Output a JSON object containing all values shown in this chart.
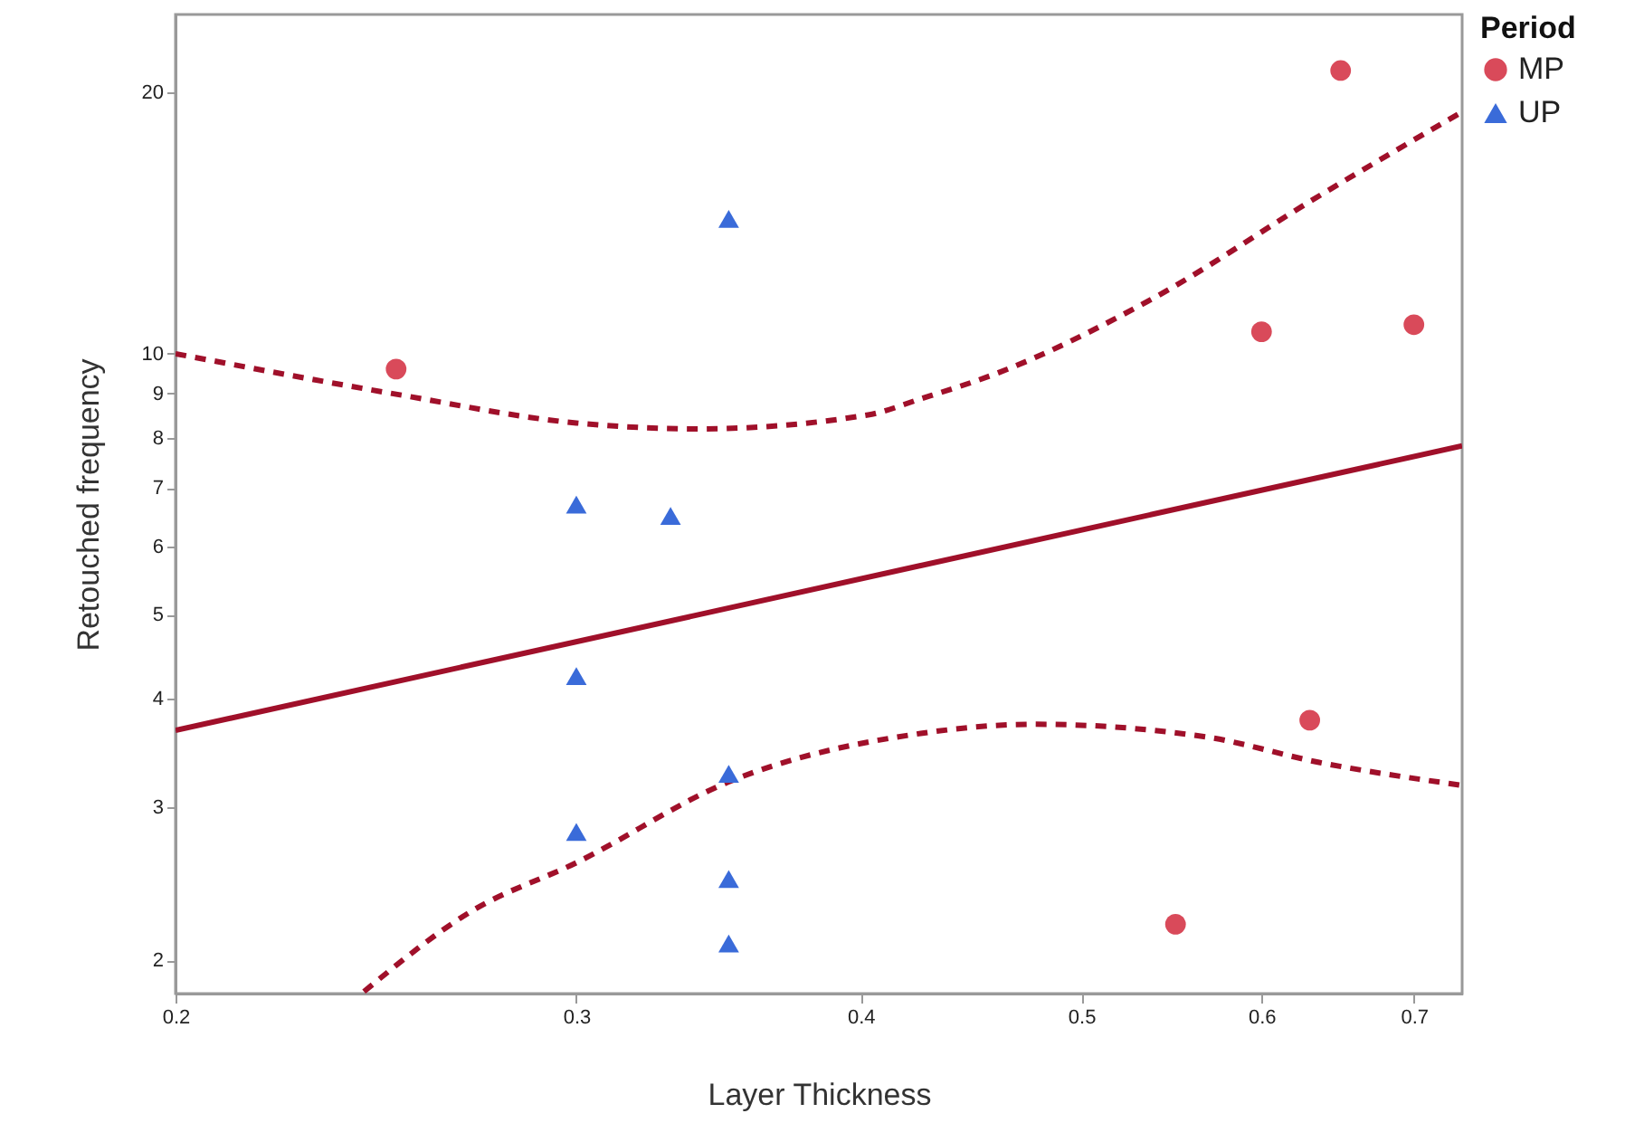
{
  "chart_data": {
    "type": "scatter",
    "xlabel": "Layer Thickness",
    "ylabel": "Retouched frequency",
    "legend_title": "Period",
    "legend": "top right",
    "grid": false,
    "log": "xy",
    "xlim": [
      0.2,
      0.735
    ],
    "xticks": [
      0.2,
      0.3,
      0.4,
      0.5,
      0.6,
      0.7
    ],
    "ylim": [
      1.83,
      24.6
    ],
    "yticks": [
      2,
      3,
      4,
      5,
      6,
      7,
      8,
      9,
      10,
      20
    ],
    "series": [
      {
        "name": "MP",
        "marker": "circle",
        "color": "#d94a5a",
        "x": [
          0.25,
          0.65,
          0.6,
          0.7,
          0.63,
          0.55
        ],
        "values": [
          9.6,
          21.2,
          10.6,
          10.8,
          3.78,
          2.2
        ]
      },
      {
        "name": "UP",
        "marker": "triangle",
        "color": "#3a6bd9",
        "x": [
          0.35,
          0.3,
          0.33,
          0.3,
          0.35,
          0.3,
          0.35,
          0.35
        ],
        "values": [
          14.3,
          6.7,
          6.5,
          4.25,
          3.28,
          2.81,
          2.48,
          2.09
        ]
      },
      {
        "type": "line",
        "line_style": "solid",
        "color": "#a0102a",
        "x": [
          0.2,
          0.735
        ],
        "values": [
          3.68,
          7.83
        ]
      },
      {
        "type": "line",
        "line_style": "dashed",
        "color": "#a0102a",
        "x": [
          0.2,
          0.25,
          0.3,
          0.339,
          0.403,
          0.425,
          0.459,
          0.537,
          0.636,
          0.735
        ],
        "values": [
          10,
          8.98,
          8.32,
          8.19,
          8.5,
          8.87,
          9.49,
          11.56,
          15.2,
          19.0
        ]
      },
      {
        "type": "line",
        "line_style": "dashed",
        "color": "#a0102a",
        "x": [
          0.242,
          0.27,
          0.3,
          0.35,
          0.425,
          0.477,
          0.566,
          0.636,
          0.735
        ],
        "values": [
          1.84,
          2.28,
          2.59,
          3.21,
          3.65,
          3.74,
          3.62,
          3.38,
          3.18
        ]
      }
    ]
  }
}
